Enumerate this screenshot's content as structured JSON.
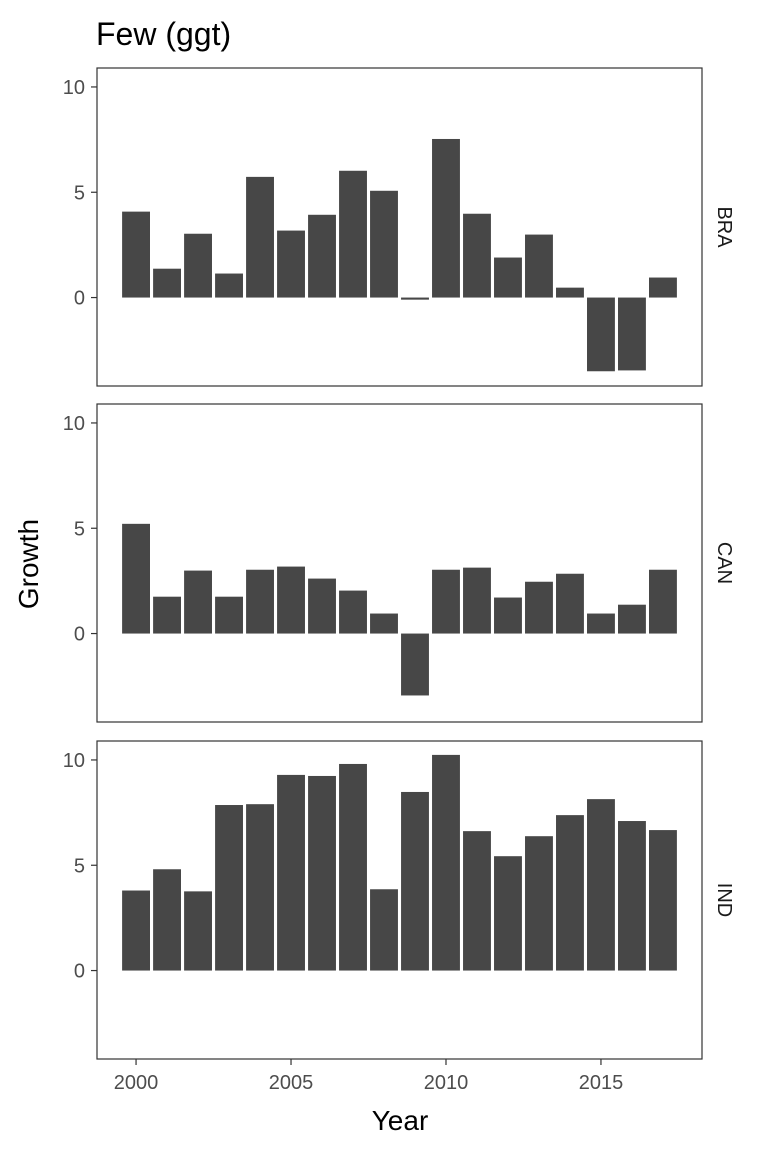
{
  "chart_data": {
    "type": "bar",
    "title": "Few (ggt)",
    "xlabel": "Year",
    "ylabel": "Growth",
    "x": [
      2000,
      2001,
      2002,
      2003,
      2004,
      2005,
      2006,
      2007,
      2008,
      2009,
      2010,
      2011,
      2012,
      2013,
      2014,
      2015,
      2016,
      2017
    ],
    "xlim": [
      1998.74,
      2018.26
    ],
    "ylim": [
      -4.2,
      10.9
    ],
    "xticks": [
      2000,
      2005,
      2010,
      2015
    ],
    "yticks": [
      0,
      5,
      10
    ],
    "grid": false,
    "bar_color": "#474747",
    "facets": [
      {
        "name": "BRA",
        "values": [
          4.08,
          1.37,
          3.03,
          1.14,
          5.73,
          3.18,
          3.93,
          6.02,
          5.07,
          -0.1,
          7.53,
          3.98,
          1.9,
          2.99,
          0.47,
          -3.5,
          -3.46,
          0.95
        ]
      },
      {
        "name": "CAN",
        "values": [
          5.21,
          1.75,
          2.99,
          1.75,
          3.03,
          3.18,
          2.61,
          2.04,
          0.95,
          -2.94,
          3.03,
          3.13,
          1.71,
          2.46,
          2.84,
          0.95,
          1.37,
          3.03
        ]
      },
      {
        "name": "IND",
        "values": [
          3.8,
          4.81,
          3.76,
          7.86,
          7.9,
          9.29,
          9.24,
          9.81,
          3.86,
          8.48,
          10.24,
          6.62,
          5.43,
          6.38,
          7.38,
          8.14,
          7.1,
          6.67
        ]
      }
    ]
  }
}
